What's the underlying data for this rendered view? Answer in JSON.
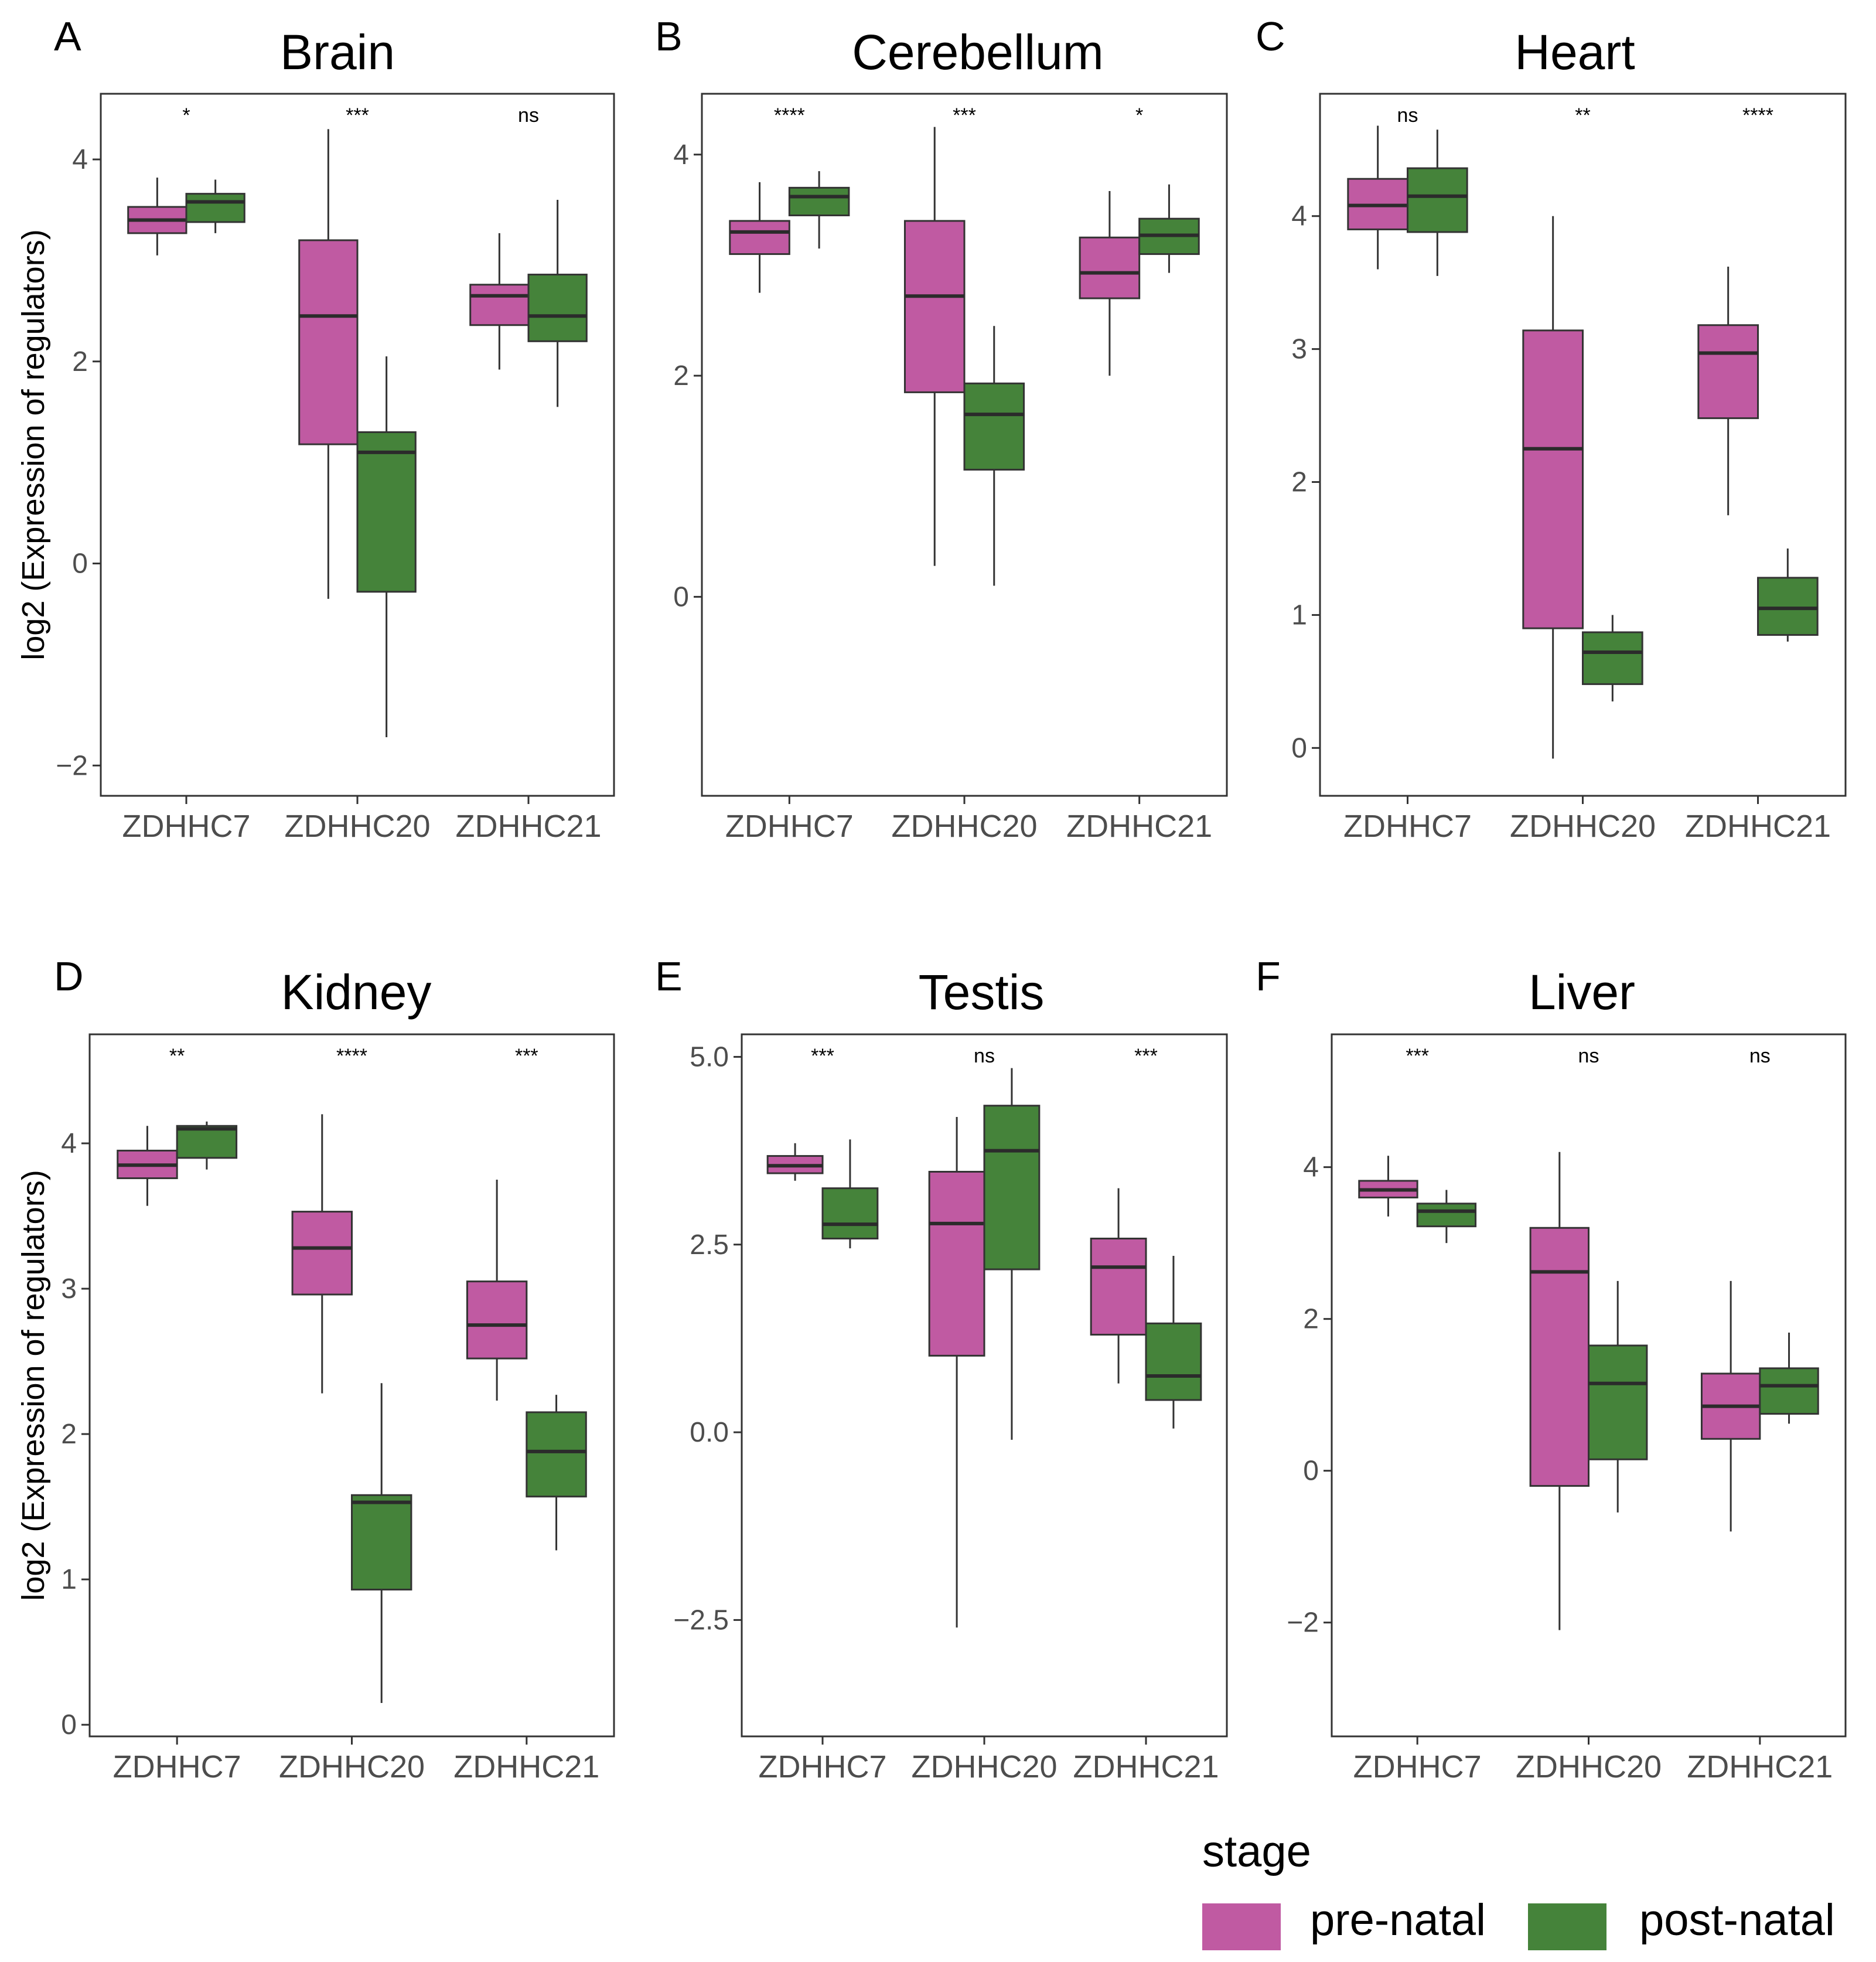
{
  "colors": {
    "pre": "#c05aa2",
    "post": "#45833a",
    "frame": "#333333",
    "median": "#2b2b2b",
    "whisker": "#333333"
  },
  "y_axis_label": "log2 (Expression of regulators)",
  "legend": {
    "title": "stage",
    "entries": [
      "pre-natal",
      "post-natal"
    ]
  },
  "chart_data": [
    {
      "type": "boxplot",
      "letter": "A",
      "title": "Brain",
      "ylim": [
        -2.3,
        4.65
      ],
      "yticks": [
        {
          "v": 4,
          "label": "4"
        },
        {
          "v": 2,
          "label": "2"
        },
        {
          "v": 0,
          "label": "0"
        },
        {
          "v": -2,
          "label": "−2"
        }
      ],
      "categories": [
        "ZDHHC7",
        "ZDHHC20",
        "ZDHHC21"
      ],
      "sig": [
        "*",
        "***",
        "ns"
      ],
      "pre": [
        [
          3.05,
          3.27,
          3.4,
          3.53,
          3.82
        ],
        [
          -0.35,
          1.18,
          2.45,
          3.2,
          4.3
        ],
        [
          1.92,
          2.36,
          2.65,
          2.76,
          3.27
        ]
      ],
      "post": [
        [
          3.27,
          3.38,
          3.58,
          3.66,
          3.8
        ],
        [
          -1.72,
          -0.28,
          1.1,
          1.3,
          2.05
        ],
        [
          1.55,
          2.2,
          2.45,
          2.86,
          3.6
        ]
      ]
    },
    {
      "type": "boxplot",
      "letter": "B",
      "title": "Cerebellum",
      "ylim": [
        -1.8,
        4.55
      ],
      "yticks": [
        {
          "v": 4,
          "label": "4"
        },
        {
          "v": 2,
          "label": "2"
        },
        {
          "v": 0,
          "label": "0"
        }
      ],
      "categories": [
        "ZDHHC7",
        "ZDHHC20",
        "ZDHHC21"
      ],
      "sig": [
        "****",
        "***",
        "*"
      ],
      "pre": [
        [
          2.75,
          3.1,
          3.3,
          3.4,
          3.75
        ],
        [
          0.28,
          1.85,
          2.72,
          3.4,
          4.25
        ],
        [
          2.0,
          2.7,
          2.93,
          3.25,
          3.67
        ]
      ],
      "post": [
        [
          3.15,
          3.45,
          3.62,
          3.7,
          3.85
        ],
        [
          0.1,
          1.15,
          1.65,
          1.93,
          2.45
        ],
        [
          2.93,
          3.1,
          3.27,
          3.42,
          3.73
        ]
      ]
    },
    {
      "type": "boxplot",
      "letter": "C",
      "title": "Heart",
      "ylim": [
        -0.36,
        4.92
      ],
      "yticks": [
        {
          "v": 4,
          "label": "4"
        },
        {
          "v": 3,
          "label": "3"
        },
        {
          "v": 2,
          "label": "2"
        },
        {
          "v": 1,
          "label": "1"
        },
        {
          "v": 0,
          "label": "0"
        }
      ],
      "categories": [
        "ZDHHC7",
        "ZDHHC20",
        "ZDHHC21"
      ],
      "sig": [
        "ns",
        "**",
        "****"
      ],
      "pre": [
        [
          3.6,
          3.9,
          4.08,
          4.28,
          4.68
        ],
        [
          -0.08,
          0.9,
          2.25,
          3.14,
          4.0
        ],
        [
          1.75,
          2.48,
          2.97,
          3.18,
          3.62
        ]
      ],
      "post": [
        [
          3.55,
          3.88,
          4.15,
          4.36,
          4.65
        ],
        [
          0.35,
          0.48,
          0.72,
          0.87,
          1.0
        ],
        [
          0.8,
          0.85,
          1.05,
          1.28,
          1.5
        ]
      ]
    },
    {
      "type": "boxplot",
      "letter": "D",
      "title": "Kidney",
      "ylim": [
        -0.08,
        4.75
      ],
      "yticks": [
        {
          "v": 4,
          "label": "4"
        },
        {
          "v": 3,
          "label": "3"
        },
        {
          "v": 2,
          "label": "2"
        },
        {
          "v": 1,
          "label": "1"
        },
        {
          "v": 0,
          "label": "0"
        }
      ],
      "categories": [
        "ZDHHC7",
        "ZDHHC20",
        "ZDHHC21"
      ],
      "sig": [
        "**",
        "****",
        "***"
      ],
      "pre": [
        [
          3.57,
          3.76,
          3.85,
          3.95,
          4.12
        ],
        [
          2.28,
          2.96,
          3.28,
          3.53,
          4.2
        ],
        [
          2.23,
          2.52,
          2.75,
          3.05,
          3.75
        ]
      ],
      "post": [
        [
          3.82,
          3.9,
          4.1,
          4.12,
          4.15
        ],
        [
          0.15,
          0.93,
          1.53,
          1.58,
          2.35
        ],
        [
          1.2,
          1.57,
          1.88,
          2.15,
          2.27
        ]
      ]
    },
    {
      "type": "boxplot",
      "letter": "E",
      "title": "Testis",
      "ylim": [
        -4.05,
        5.3
      ],
      "yticks": [
        {
          "v": 5,
          "label": "5.0"
        },
        {
          "v": 2.5,
          "label": "2.5"
        },
        {
          "v": 0,
          "label": "0.0"
        },
        {
          "v": -2.5,
          "label": "−2.5"
        }
      ],
      "categories": [
        "ZDHHC7",
        "ZDHHC20",
        "ZDHHC21"
      ],
      "sig": [
        "***",
        "ns",
        "***"
      ],
      "pre": [
        [
          3.35,
          3.45,
          3.55,
          3.68,
          3.85
        ],
        [
          -2.6,
          1.02,
          2.78,
          3.47,
          4.2
        ],
        [
          0.65,
          1.3,
          2.2,
          2.58,
          3.25
        ]
      ],
      "post": [
        [
          2.45,
          2.58,
          2.77,
          3.25,
          3.9
        ],
        [
          -0.1,
          2.17,
          3.75,
          4.35,
          4.85
        ],
        [
          0.05,
          0.43,
          0.75,
          1.45,
          2.35
        ]
      ]
    },
    {
      "type": "boxplot",
      "letter": "F",
      "title": "Liver",
      "ylim": [
        -3.5,
        5.75
      ],
      "yticks": [
        {
          "v": 4,
          "label": "4"
        },
        {
          "v": 2,
          "label": "2"
        },
        {
          "v": 0,
          "label": "0"
        },
        {
          "v": -2,
          "label": "−2"
        }
      ],
      "categories": [
        "ZDHHC7",
        "ZDHHC20",
        "ZDHHC21"
      ],
      "sig": [
        "***",
        "ns",
        "ns"
      ],
      "pre": [
        [
          3.35,
          3.6,
          3.7,
          3.82,
          4.15
        ],
        [
          -2.1,
          -0.2,
          2.62,
          3.2,
          4.2
        ],
        [
          -0.8,
          0.42,
          0.85,
          1.28,
          2.5
        ]
      ],
      "post": [
        [
          3.0,
          3.22,
          3.42,
          3.52,
          3.7
        ],
        [
          -0.55,
          0.15,
          1.15,
          1.65,
          2.5
        ],
        [
          0.62,
          0.75,
          1.12,
          1.35,
          1.82
        ]
      ]
    }
  ]
}
